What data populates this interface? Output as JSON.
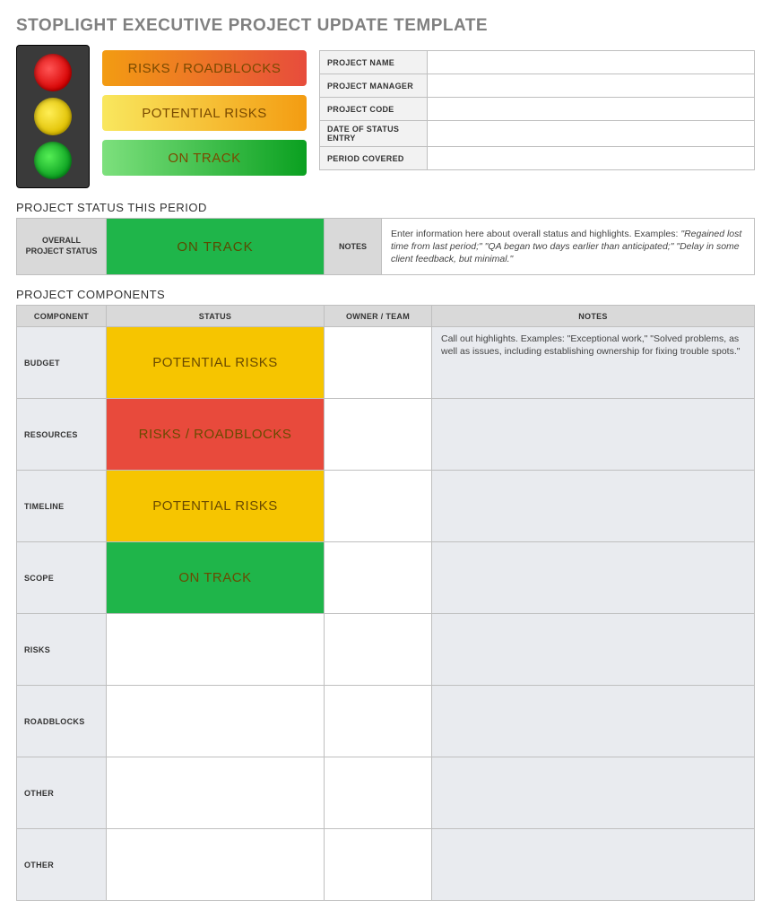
{
  "title": "STOPLIGHT EXECUTIVE PROJECT UPDATE TEMPLATE",
  "colors": {
    "title_text": "#808080",
    "border": "#bfbfbf",
    "header_bg": "#d9d9d9",
    "alt_bg": "#e9ebef",
    "status_green": "#1fb54a",
    "status_yellow": "#f6c500",
    "status_red": "#e84a3c",
    "stoplight_body": "#3a3a3a"
  },
  "legend": {
    "red": "RISKS / ROADBLOCKS",
    "yellow": "POTENTIAL RISKS",
    "green": "ON TRACK"
  },
  "meta_fields": [
    {
      "label": "PROJECT NAME",
      "value": ""
    },
    {
      "label": "PROJECT MANAGER",
      "value": ""
    },
    {
      "label": "PROJECT CODE",
      "value": ""
    },
    {
      "label": "DATE OF STATUS ENTRY",
      "value": ""
    },
    {
      "label": "PERIOD COVERED",
      "value": ""
    }
  ],
  "sections": {
    "status_heading": "PROJECT STATUS THIS PERIOD",
    "components_heading": "PROJECT COMPONENTS"
  },
  "overall": {
    "label": "OVERALL PROJECT STATUS",
    "status_text": "ON TRACK",
    "status_level": "green",
    "notes_label": "NOTES",
    "notes_lead": "Enter information here about overall status and highlights. Examples: ",
    "notes_examples": "\"Regained lost time from last period;\" \"QA began two days earlier than anticipated;\" \"Delay in some client feedback, but minimal.\""
  },
  "components_columns": {
    "component": "COMPONENT",
    "status": "STATUS",
    "owner": "OWNER / TEAM",
    "notes": "NOTES"
  },
  "components": [
    {
      "label": "BUDGET",
      "status_text": "POTENTIAL RISKS",
      "status_level": "yellow",
      "owner": "",
      "notes": "Call out highlights. Examples: \"Exceptional work,\" \"Solved problems, as well as issues, including establishing ownership for fixing trouble spots.\""
    },
    {
      "label": "RESOURCES",
      "status_text": "RISKS / ROADBLOCKS",
      "status_level": "red",
      "owner": "",
      "notes": ""
    },
    {
      "label": "TIMELINE",
      "status_text": "POTENTIAL RISKS",
      "status_level": "yellow",
      "owner": "",
      "notes": ""
    },
    {
      "label": "SCOPE",
      "status_text": "ON TRACK",
      "status_level": "green",
      "owner": "",
      "notes": ""
    },
    {
      "label": "RISKS",
      "status_text": "",
      "status_level": "",
      "owner": "",
      "notes": ""
    },
    {
      "label": "ROADBLOCKS",
      "status_text": "",
      "status_level": "",
      "owner": "",
      "notes": ""
    },
    {
      "label": "OTHER",
      "status_text": "",
      "status_level": "",
      "owner": "",
      "notes": ""
    },
    {
      "label": "OTHER",
      "status_text": "",
      "status_level": "",
      "owner": "",
      "notes": ""
    }
  ]
}
